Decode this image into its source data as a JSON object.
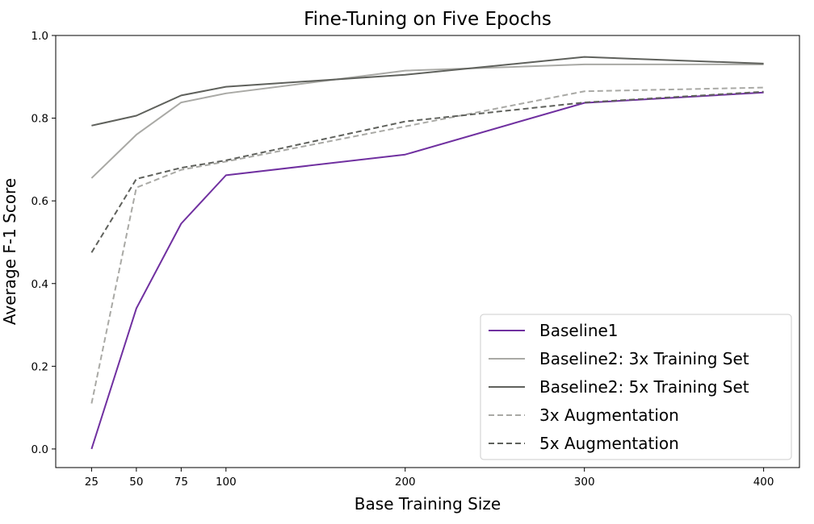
{
  "chart_data": {
    "type": "line",
    "title": "Fine-Tuning on Five Epochs",
    "xlabel": "Base Training Size",
    "ylabel": "Average F-1 Score",
    "x": [
      25,
      50,
      75,
      100,
      200,
      300,
      400
    ],
    "xticks": [
      "25",
      "50",
      "75",
      "100",
      "200",
      "300",
      "400"
    ],
    "yticks": [
      "0.0",
      "0.2",
      "0.4",
      "0.6",
      "0.8",
      "1.0"
    ],
    "xlim": [
      5,
      420
    ],
    "ylim": [
      -0.045,
      1.0
    ],
    "grid": false,
    "legend_position": "bottom-right",
    "series": [
      {
        "name": "Baseline1",
        "values": [
          0.0,
          0.34,
          0.545,
          0.662,
          0.712,
          0.837,
          0.862
        ],
        "color": "#7030a0",
        "dash": false
      },
      {
        "name": "Baseline2: 3x Training Set",
        "values": [
          0.655,
          0.76,
          0.838,
          0.86,
          0.915,
          0.93,
          0.93
        ],
        "color": "#a9a9a5",
        "dash": false
      },
      {
        "name": "Baseline2: 5x Training Set",
        "values": [
          0.782,
          0.806,
          0.855,
          0.876,
          0.905,
          0.948,
          0.932
        ],
        "color": "#5f615c",
        "dash": false
      },
      {
        "name": "3x Augmentation",
        "values": [
          0.11,
          0.632,
          0.675,
          0.695,
          0.78,
          0.865,
          0.874
        ],
        "color": "#a9a9a5",
        "dash": true
      },
      {
        "name": "5x Augmentation",
        "values": [
          0.475,
          0.653,
          0.68,
          0.698,
          0.792,
          0.838,
          0.864
        ],
        "color": "#5f615c",
        "dash": true
      }
    ]
  }
}
